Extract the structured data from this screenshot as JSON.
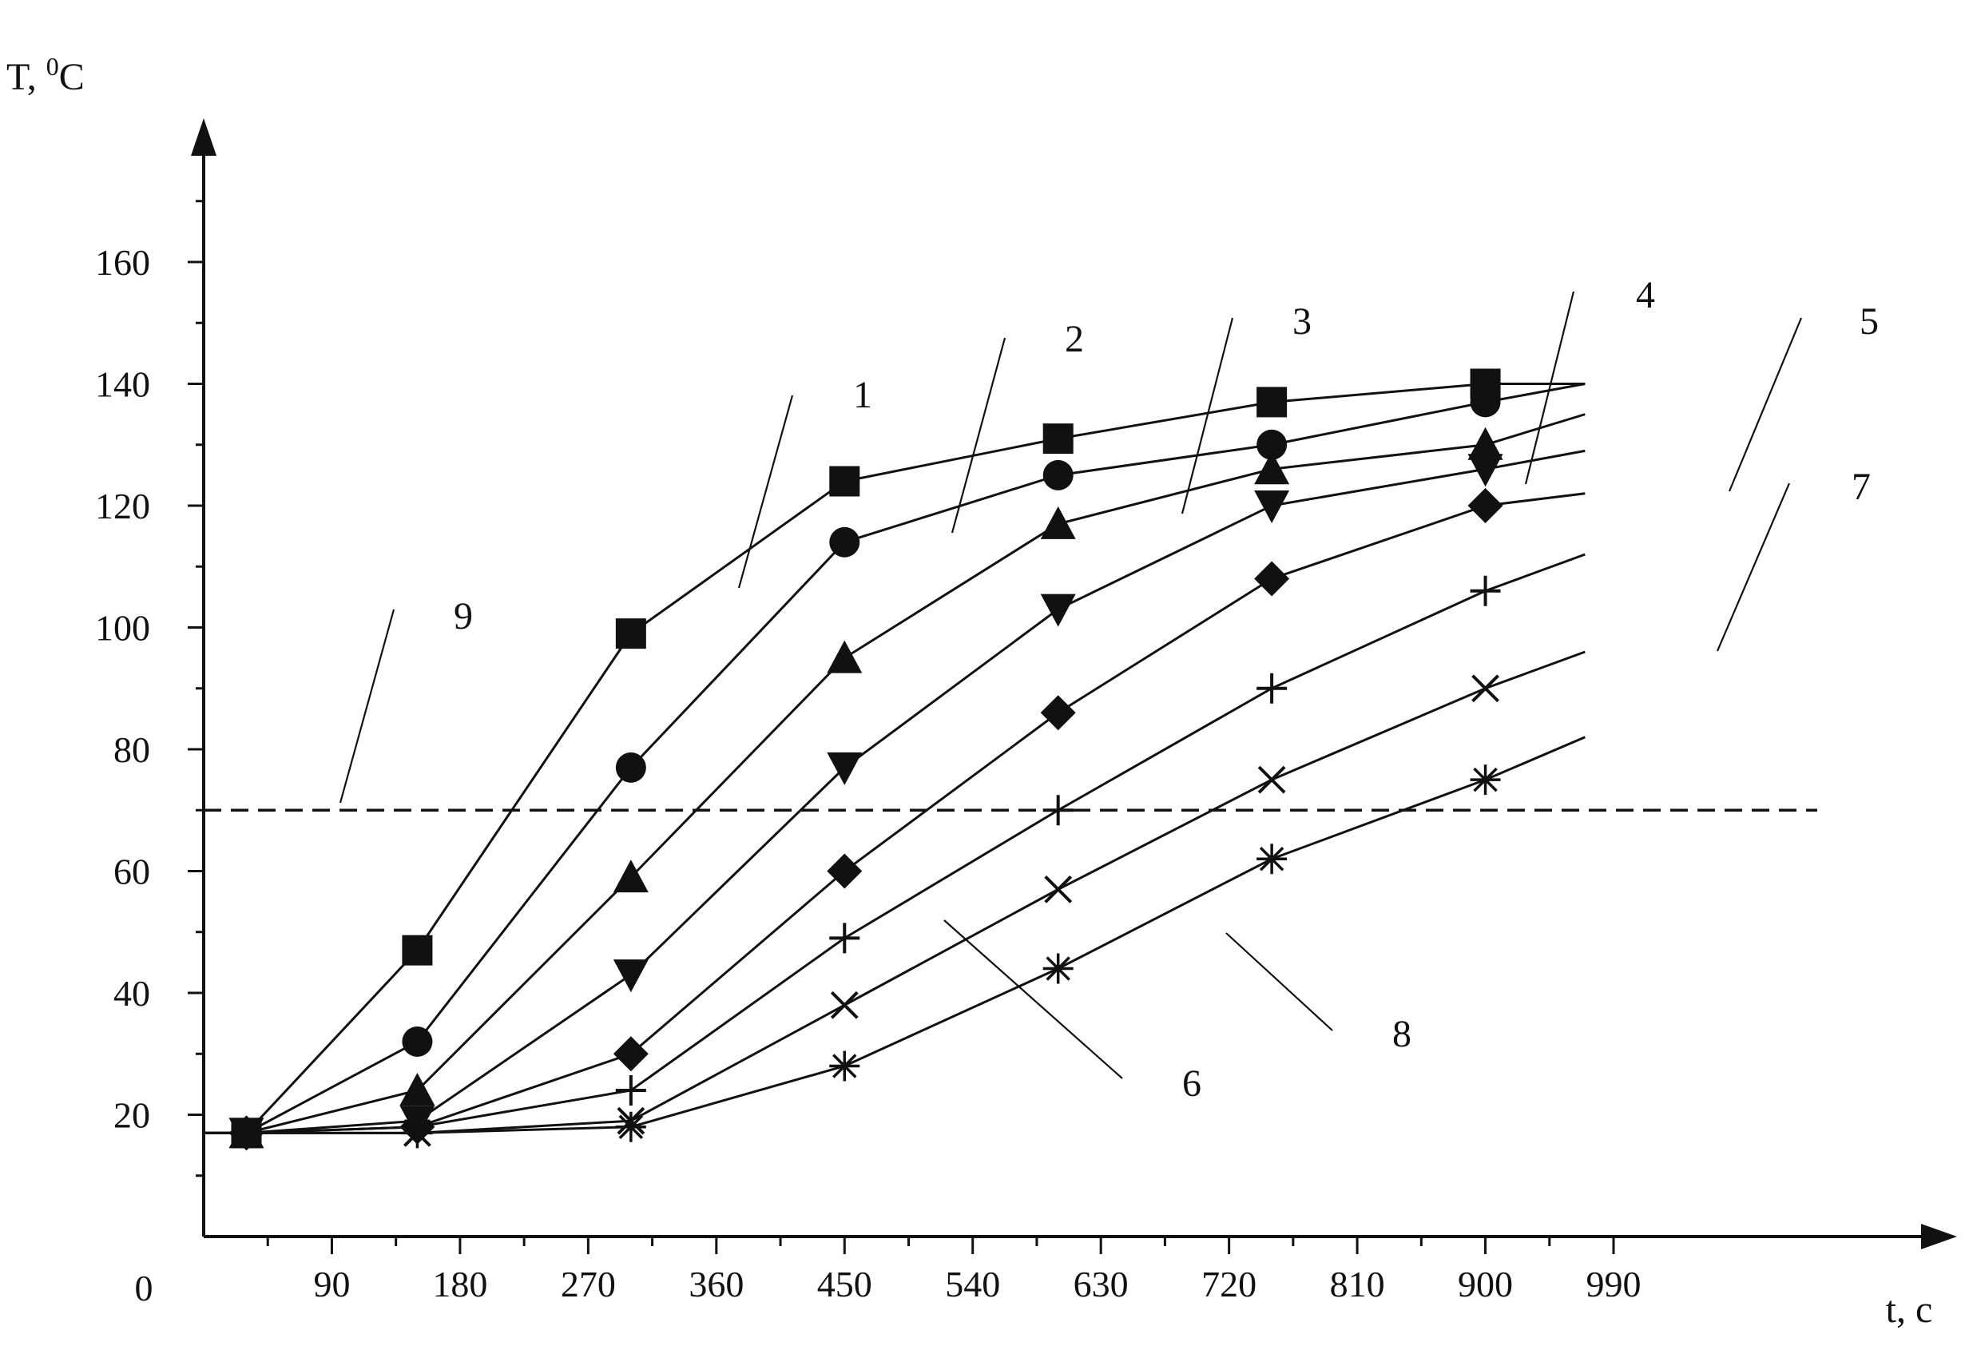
{
  "chart_data": {
    "type": "line",
    "title": "",
    "ylabel": "T, ",
    "ylabel_sup": "0",
    "ylabel_unit": "C",
    "xlabel": "t, c",
    "origin_label": "0",
    "xlim": [
      0,
      1080
    ],
    "ylim": [
      0,
      180
    ],
    "xticks": [
      90,
      180,
      270,
      360,
      450,
      540,
      630,
      720,
      810,
      900,
      990
    ],
    "yticks": [
      20,
      40,
      60,
      80,
      100,
      120,
      140,
      160
    ],
    "grid": false,
    "legend": "none",
    "line_color": "#111111",
    "threshold": {
      "y": 70,
      "style": "dashed",
      "label": "9"
    },
    "series": [
      {
        "label": "1",
        "marker": "square",
        "x": [
          30,
          150,
          300,
          450,
          600,
          750,
          900,
          970
        ],
        "y": [
          17,
          47,
          99,
          124,
          131,
          137,
          140,
          140
        ]
      },
      {
        "label": "2",
        "marker": "circle",
        "x": [
          30,
          150,
          300,
          450,
          600,
          750,
          900,
          970
        ],
        "y": [
          17,
          32,
          77,
          114,
          125,
          130,
          137,
          140
        ]
      },
      {
        "label": "3",
        "marker": "triangle-up",
        "x": [
          30,
          150,
          300,
          450,
          600,
          750,
          900,
          970
        ],
        "y": [
          17,
          24,
          59,
          95,
          117,
          126,
          130,
          135
        ]
      },
      {
        "label": "4",
        "marker": "triangle-down",
        "x": [
          30,
          150,
          300,
          450,
          600,
          750,
          900,
          970
        ],
        "y": [
          17,
          19,
          43,
          77,
          103,
          120,
          126,
          129
        ]
      },
      {
        "label": "5",
        "marker": "diamond",
        "x": [
          30,
          150,
          300,
          450,
          600,
          750,
          900,
          970
        ],
        "y": [
          17,
          18,
          30,
          60,
          86,
          108,
          120,
          122
        ]
      },
      {
        "label": "6",
        "marker": "plus",
        "x": [
          30,
          150,
          300,
          450,
          600,
          750,
          900,
          970
        ],
        "y": [
          17,
          18,
          24,
          49,
          70,
          90,
          106,
          112
        ]
      },
      {
        "label": "7",
        "marker": "x",
        "x": [
          30,
          150,
          300,
          450,
          600,
          750,
          900,
          970
        ],
        "y": [
          17,
          17,
          19,
          38,
          57,
          75,
          90,
          96
        ]
      },
      {
        "label": "8",
        "marker": "asterisk",
        "x": [
          30,
          150,
          300,
          450,
          600,
          750,
          900,
          970
        ],
        "y": [
          17,
          17,
          18,
          28,
          44,
          62,
          75,
          82
        ]
      }
    ],
    "curve_labels": [
      {
        "text": "1",
        "series": "1"
      },
      {
        "text": "2",
        "series": "2"
      },
      {
        "text": "3",
        "series": "3"
      },
      {
        "text": "4",
        "series": "4"
      },
      {
        "text": "5",
        "series": "5"
      },
      {
        "text": "6",
        "series": "6"
      },
      {
        "text": "7",
        "series": "7"
      },
      {
        "text": "8",
        "series": "8"
      },
      {
        "text": "9",
        "series": "threshold"
      }
    ]
  }
}
